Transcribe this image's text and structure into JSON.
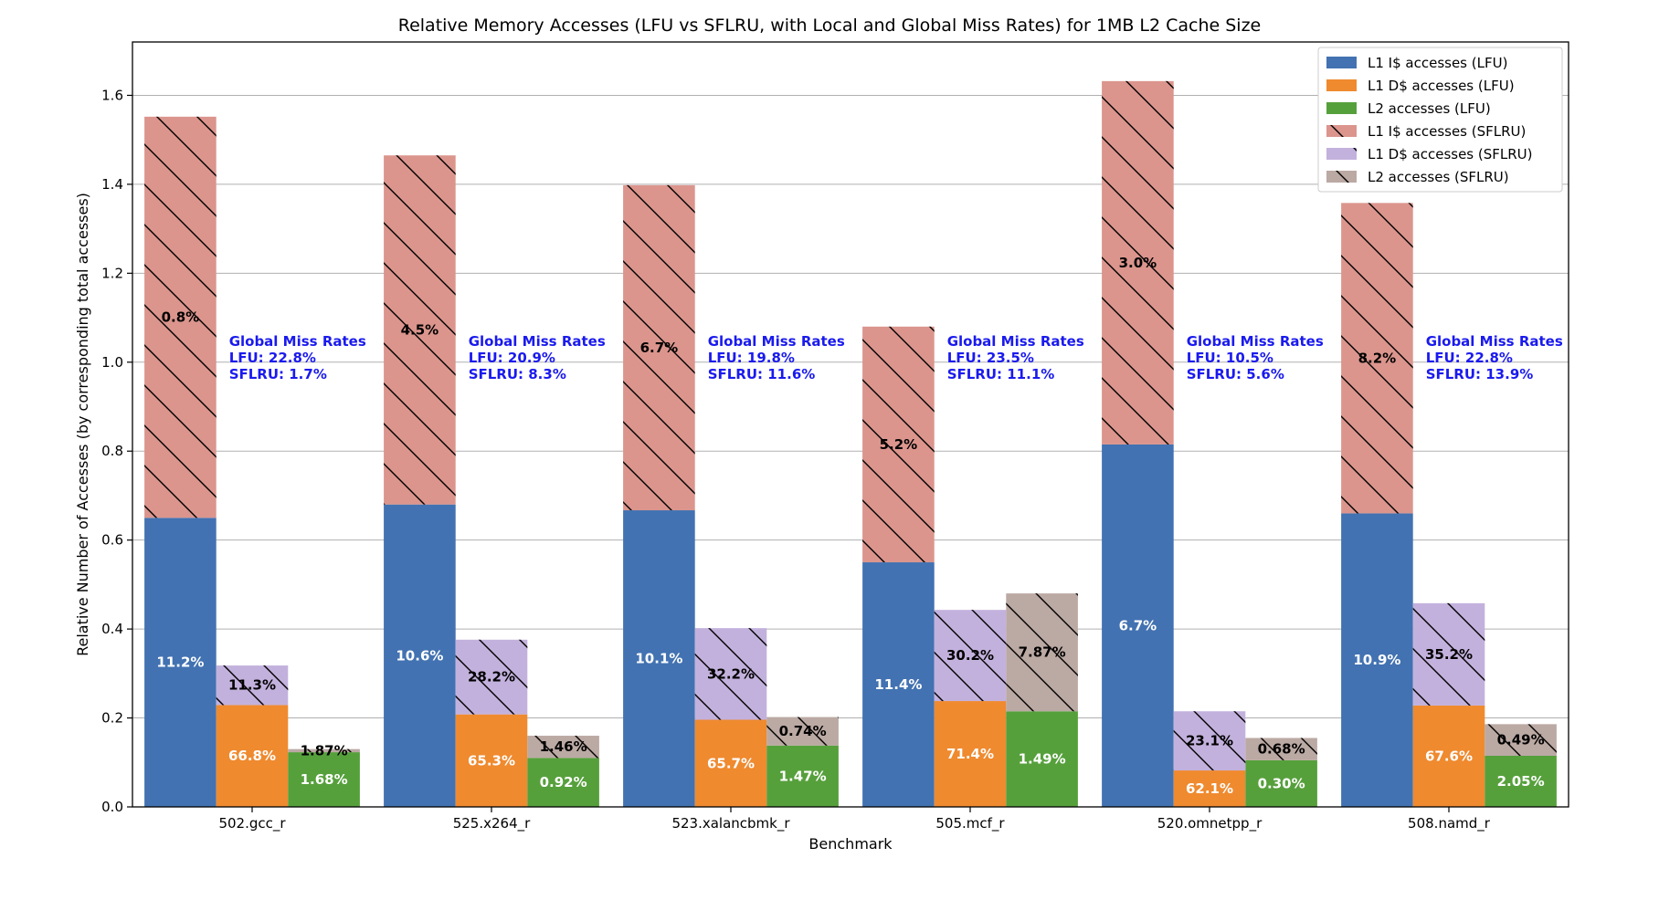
{
  "chart_data": {
    "type": "bar",
    "title": "Relative Memory Accesses (LFU vs SFLRU, with Local and Global Miss Rates) for 1MB L2 Cache Size",
    "xlabel": "Benchmark",
    "ylabel": "Relative Number of Accesses (by corresponding total accesses)",
    "ylim": [
      0,
      1.72
    ],
    "yticks": [
      "0.0",
      "0.2",
      "0.4",
      "0.6",
      "0.8",
      "1.0",
      "1.2",
      "1.4",
      "1.6"
    ],
    "ytick_values": [
      0,
      0.2,
      0.4,
      0.6,
      0.8,
      1.0,
      1.2,
      1.4,
      1.6
    ],
    "grid": "horizontal",
    "legend_position": "top-right",
    "categories": [
      "502.gcc_r",
      "525.x264_r",
      "523.xalancbmk_r",
      "505.mcf_r",
      "520.omnetpp_r",
      "508.namd_r"
    ],
    "series": [
      {
        "name": "L1 I$ accesses (LFU)",
        "color": "#4272b1",
        "hatch": false,
        "group": 0,
        "values": [
          0.65,
          0.68,
          0.667,
          0.55,
          0.815,
          0.66
        ],
        "labels": [
          "11.2%",
          "10.6%",
          "10.1%",
          "11.4%",
          "6.7%",
          "10.9%"
        ],
        "label_color": "#ffffff"
      },
      {
        "name": "L1 D$ accesses (LFU)",
        "color": "#ef8a2f",
        "hatch": false,
        "group": 1,
        "values": [
          0.229,
          0.208,
          0.196,
          0.238,
          0.082,
          0.228
        ],
        "labels": [
          "66.8%",
          "65.3%",
          "65.7%",
          "71.4%",
          "62.1%",
          "67.6%"
        ],
        "label_color": "#ffffff"
      },
      {
        "name": "L2 accesses (LFU)",
        "color": "#56a03c",
        "hatch": false,
        "group": 2,
        "values": [
          0.123,
          0.11,
          0.138,
          0.215,
          0.105,
          0.115
        ],
        "labels": [
          "1.68%",
          "0.92%",
          "1.47%",
          "1.49%",
          "0.30%",
          "2.05%"
        ],
        "label_color": "#ffffff"
      },
      {
        "name": "L1 I$ accesses (SFLRU)",
        "color": "#db958d",
        "hatch": true,
        "group": 0,
        "values": [
          1.552,
          1.465,
          1.398,
          1.08,
          1.632,
          1.358
        ],
        "labels": [
          "0.8%",
          "4.5%",
          "6.7%",
          "5.2%",
          "3.0%",
          "8.2%"
        ],
        "label_color": "#000000"
      },
      {
        "name": "L1 D$ accesses (SFLRU)",
        "color": "#c3b1dd",
        "hatch": true,
        "group": 1,
        "values": [
          0.318,
          0.376,
          0.402,
          0.443,
          0.215,
          0.458
        ],
        "labels": [
          "11.3%",
          "28.2%",
          "32.2%",
          "30.2%",
          "23.1%",
          "35.2%"
        ],
        "label_color": "#000000"
      },
      {
        "name": "L2 accesses (SFLRU)",
        "color": "#bba9a3",
        "hatch": true,
        "group": 2,
        "values": [
          0.13,
          0.16,
          0.202,
          0.48,
          0.155,
          0.186
        ],
        "labels": [
          "1.87%",
          "1.46%",
          "0.74%",
          "7.87%",
          "0.68%",
          "0.49%"
        ],
        "label_color": "#000000"
      }
    ],
    "annotations": [
      {
        "heading": "Global Miss Rates",
        "lfu": "LFU: 22.8%",
        "sflru": "SFLRU: 1.7%"
      },
      {
        "heading": "Global Miss Rates",
        "lfu": "LFU: 20.9%",
        "sflru": "SFLRU: 8.3%"
      },
      {
        "heading": "Global Miss Rates",
        "lfu": "LFU: 19.8%",
        "sflru": "SFLRU: 11.6%"
      },
      {
        "heading": "Global Miss Rates",
        "lfu": "LFU: 23.5%",
        "sflru": "SFLRU: 11.1%"
      },
      {
        "heading": "Global Miss Rates",
        "lfu": "LFU: 10.5%",
        "sflru": "SFLRU: 5.6%"
      },
      {
        "heading": "Global Miss Rates",
        "lfu": "LFU: 22.8%",
        "sflru": "SFLRU: 13.9%"
      }
    ],
    "annotation_color": "#1a1aee",
    "grid_color": "#b0b0b0",
    "axis_color": "#000000"
  }
}
